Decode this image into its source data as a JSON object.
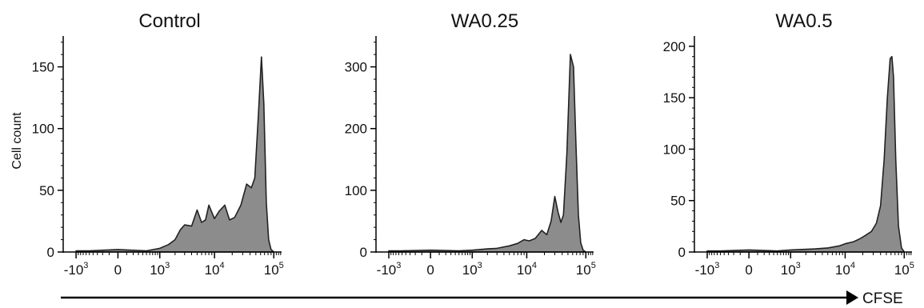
{
  "colors": {
    "fill": "#8c8c8c",
    "stroke": "#222222",
    "axis": "#000000"
  },
  "shared": {
    "ylabel": "Cell count",
    "xlabel_arrow": "CFSE",
    "x_ticks": [
      {
        "base": "-10",
        "exp": "3",
        "value": -1000
      },
      {
        "base": "0",
        "exp": "",
        "value": 0
      },
      {
        "base": "10",
        "exp": "3",
        "value": 1000
      },
      {
        "base": "10",
        "exp": "4",
        "value": 10000
      },
      {
        "base": "10",
        "exp": "5",
        "value": 100000
      }
    ]
  },
  "chart_data": [
    {
      "type": "area",
      "title": "Control",
      "ylim": [
        0,
        175
      ],
      "yticks": [
        0,
        50,
        100,
        150
      ],
      "x_scale": "biexponential (CFSE fluorescence)",
      "x": [
        -1000,
        -500,
        0,
        500,
        1000,
        1500,
        2000,
        2500,
        3000,
        4000,
        5000,
        6000,
        7000,
        8000,
        10000,
        12000,
        15000,
        18000,
        22000,
        28000,
        35000,
        42000,
        48000,
        55000,
        62000,
        68000,
        75000,
        82000,
        90000,
        100000
      ],
      "values": [
        1,
        1,
        2,
        1,
        3,
        6,
        10,
        18,
        22,
        21,
        34,
        24,
        26,
        38,
        27,
        33,
        38,
        26,
        28,
        38,
        55,
        52,
        60,
        110,
        158,
        120,
        40,
        10,
        2,
        0
      ]
    },
    {
      "type": "area",
      "title": "WA0.25",
      "ylim": [
        0,
        350
      ],
      "yticks": [
        0,
        100,
        200,
        300
      ],
      "x_scale": "biexponential (CFSE fluorescence)",
      "x": [
        -1000,
        -500,
        0,
        500,
        1000,
        2000,
        3000,
        5000,
        7000,
        9000,
        11000,
        14000,
        18000,
        22000,
        26000,
        30000,
        34000,
        38000,
        42000,
        48000,
        55000,
        62000,
        68000,
        75000,
        82000,
        90000,
        100000
      ],
      "values": [
        2,
        2,
        3,
        2,
        3,
        5,
        6,
        10,
        14,
        20,
        18,
        22,
        35,
        28,
        50,
        90,
        65,
        48,
        60,
        160,
        320,
        300,
        180,
        60,
        15,
        3,
        0
      ]
    },
    {
      "type": "area",
      "title": "WA0.5",
      "ylim": [
        0,
        210
      ],
      "yticks": [
        0,
        50,
        100,
        150,
        200
      ],
      "x_scale": "biexponential (CFSE fluorescence)",
      "x": [
        -1000,
        -500,
        0,
        500,
        1000,
        3000,
        5000,
        8000,
        10000,
        14000,
        18000,
        22000,
        28000,
        34000,
        40000,
        46000,
        52000,
        58000,
        62000,
        66000,
        72000,
        80000,
        90000,
        100000
      ],
      "values": [
        1,
        1,
        2,
        1,
        2,
        3,
        4,
        6,
        8,
        10,
        13,
        16,
        20,
        28,
        45,
        90,
        150,
        188,
        190,
        170,
        90,
        25,
        4,
        0
      ]
    }
  ]
}
